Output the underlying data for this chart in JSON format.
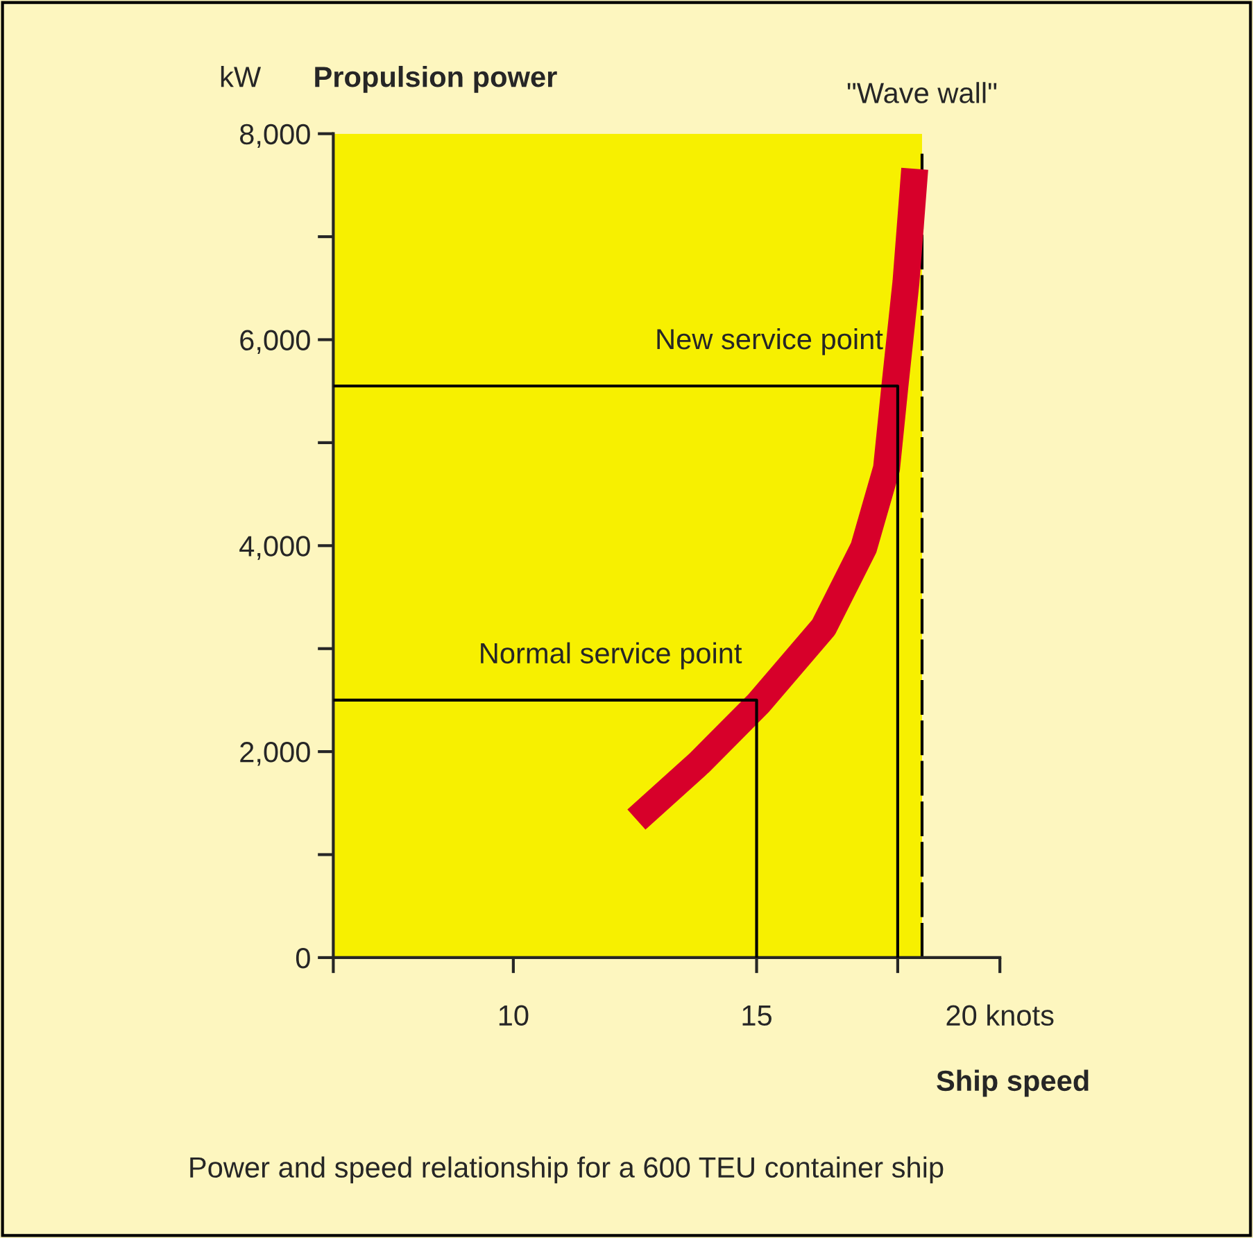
{
  "chart_data": {
    "type": "line",
    "title": "Propulsion power",
    "ylabel": "kW",
    "xlabel": "Ship speed",
    "x": [
      12.53,
      13.82,
      15.04,
      16.38,
      17.2,
      17.67,
      17.84,
      18.07,
      18.25
    ],
    "series": [
      {
        "color": "#d7002a",
        "values": [
          1340,
          1890,
          2470,
          3210,
          3980,
          4750,
          5540,
          6560,
          7660
        ]
      },
      {
        "color": "#000000",
        "x": [
          6.3,
          15,
          15
        ],
        "values": [
          2500,
          2500,
          0
        ]
      },
      {
        "color": "#000000",
        "x": [
          6.3,
          17.9,
          17.9
        ],
        "values": [
          5550,
          5550,
          0
        ]
      }
    ],
    "xlim": [
      6.3,
      20
    ],
    "ylim": [
      0,
      8000
    ],
    "xticks": [
      {
        "value": 6.3,
        "label": null
      },
      10,
      15,
      {
        "value": 17.9,
        "label": null
      },
      {
        "value": 20,
        "label": "20 knots"
      }
    ],
    "yticks": [
      0,
      {
        "value": 1000,
        "label": null
      },
      {
        "value": 2000,
        "label": "2,000"
      },
      {
        "value": 3000,
        "label": null
      },
      {
        "value": 4000,
        "label": "4,000"
      },
      {
        "value": 5000,
        "label": null
      },
      {
        "value": 6000,
        "label": "6,000"
      },
      {
        "value": 7000,
        "label": null
      },
      {
        "value": 8000,
        "label": "8,000"
      }
    ],
    "bands": [
      {
        "axis": "x",
        "from": 6.3,
        "to": 18.4,
        "color": "#f7f000"
      }
    ],
    "ref_lines": [
      {
        "axis": "x",
        "value": 18.4,
        "label": "\"Wave wall\"",
        "color": "#000000",
        "line_style": "dashed"
      }
    ],
    "annotations": [
      {
        "text": "Normal service point",
        "x": 15,
        "y": 2500
      },
      {
        "text": "New service point",
        "x": 17.9,
        "y": 5550
      },
      "Power and speed relationship for a 600 TEU container ship"
    ],
    "grid": false,
    "legend": false,
    "marker": "none",
    "line_style": "solid"
  }
}
